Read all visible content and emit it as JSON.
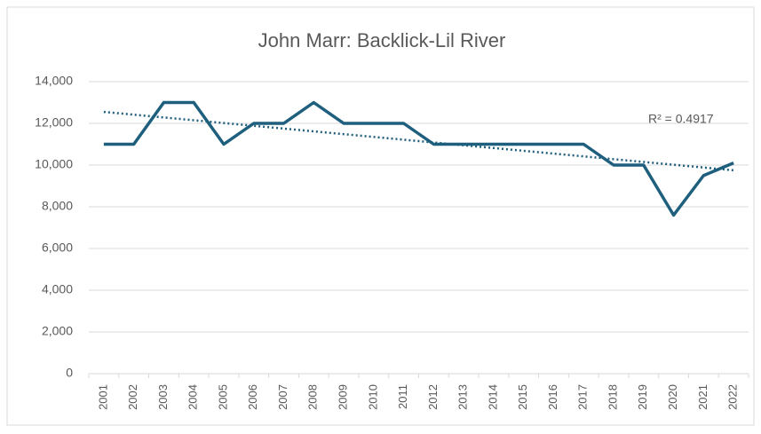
{
  "chart_data": {
    "type": "line",
    "title": "John Marr: Backlick-Lil River",
    "categories": [
      "2001",
      "2002",
      "2003",
      "2004",
      "2005",
      "2006",
      "2007",
      "2008",
      "2009",
      "2010",
      "2011",
      "2012",
      "2013",
      "2014",
      "2015",
      "2016",
      "2017",
      "2018",
      "2019",
      "2020",
      "2021",
      "2022"
    ],
    "values": [
      11000,
      11000,
      13000,
      13000,
      11000,
      12000,
      12000,
      13000,
      12000,
      12000,
      12000,
      11000,
      11000,
      11000,
      11000,
      11000,
      11000,
      10000,
      10000,
      7600,
      9500,
      10100
    ],
    "color": "#1f5f7e",
    "ylim": [
      0,
      14000
    ],
    "yticks": [
      0,
      {
        "value": 2000,
        "label": "2,000"
      },
      {
        "value": 4000,
        "label": "4,000"
      },
      {
        "value": 6000,
        "label": "6,000"
      },
      {
        "value": 8000,
        "label": "8,000"
      },
      {
        "value": 10000,
        "label": "10,000"
      },
      {
        "value": 12000,
        "label": "12,000"
      },
      {
        "value": 14000,
        "label": "14,000"
      }
    ],
    "grid": true,
    "trendline": {
      "start": 12550,
      "end": 9750,
      "label": "R² = 0.4917"
    }
  }
}
